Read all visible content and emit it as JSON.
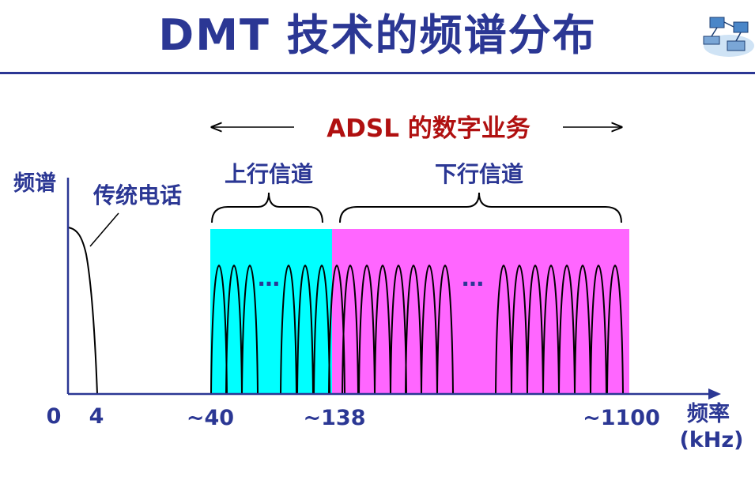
{
  "title": "DMT 技术的频谱分布",
  "diagram": {
    "adsl_label": "ADSL 的数字业务",
    "upstream_label": "上行信道",
    "downstream_label": "下行信道",
    "telephone_label": "传统电话",
    "y_axis_label": "频谱",
    "x_axis_label_1": "频率",
    "x_axis_label_2": "(kHz)",
    "ellipsis_upstream": "…",
    "ellipsis_downstream": "…",
    "tick_labels": [
      "0",
      "4",
      "~40",
      "~138",
      "~1100"
    ]
  },
  "colors": {
    "title": "#2b3794",
    "upstream_band": "#00ffff",
    "downstream_band": "#ff66ff",
    "adsl_label": "#b01010",
    "text": "#2b3794"
  }
}
